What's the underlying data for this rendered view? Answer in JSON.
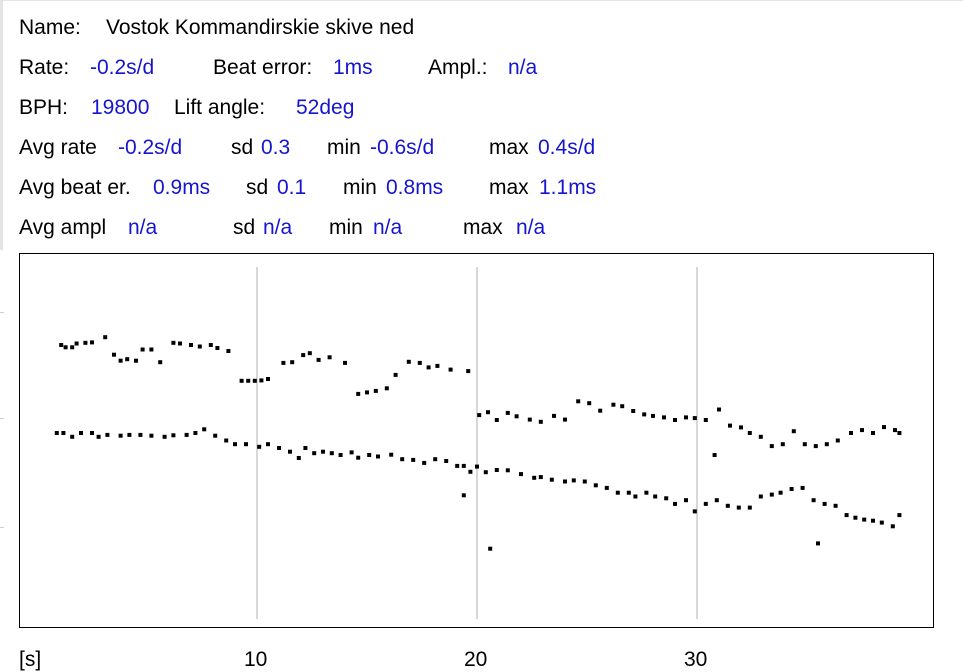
{
  "header": {
    "name_label": "Name:",
    "name_value": "Vostok Kommandirskie skive ned",
    "rate_label": "Rate:",
    "rate_value": "-0.2s/d",
    "beat_error_label": "Beat error:",
    "beat_error_value": "1ms",
    "ampl_label": "Ampl.:",
    "ampl_value": "n/a",
    "bph_label": "BPH:",
    "bph_value": "19800",
    "lift_label": "Lift angle:",
    "lift_value": "52deg"
  },
  "stats": {
    "avg_rate": {
      "label": "Avg rate",
      "value": "-0.2s/d",
      "sd_label": "sd",
      "sd": "0.3",
      "min_label": "min",
      "min": "-0.6s/d",
      "max_label": "max",
      "max": "0.4s/d"
    },
    "avg_beat": {
      "label": "Avg beat er.",
      "value": "0.9ms",
      "sd_label": "sd",
      "sd": "0.1",
      "min_label": "min",
      "min": "0.8ms",
      "max_label": "max",
      "max": "1.1ms"
    },
    "avg_ampl": {
      "label": "Avg ampl",
      "value": "n/a",
      "sd_label": "sd",
      "sd": "n/a",
      "min_label": "min",
      "min": "n/a",
      "max_label": "max",
      "max": "n/a"
    }
  },
  "colors": {
    "value": "#1515d0",
    "grid": "#cccccc",
    "dot": "#000000"
  },
  "chart_data": {
    "type": "scatter",
    "xlabel": "[s]",
    "xlim": [
      0,
      40
    ],
    "ylim": [
      0,
      1
    ],
    "xticks": [
      10,
      20,
      30
    ],
    "xtick_labels": [
      "10",
      "20",
      "30"
    ],
    "grid": "vertical",
    "series": [
      {
        "values": [
          [
            1.1,
            0.756
          ],
          [
            1.3,
            0.75
          ],
          [
            1.6,
            0.75
          ],
          [
            1.8,
            0.76
          ],
          [
            2.2,
            0.762
          ],
          [
            2.5,
            0.763
          ],
          [
            3.1,
            0.777
          ],
          [
            3.5,
            0.73
          ],
          [
            3.8,
            0.714
          ],
          [
            4.1,
            0.718
          ],
          [
            4.5,
            0.714
          ],
          [
            4.8,
            0.744
          ],
          [
            5.2,
            0.744
          ],
          [
            5.6,
            0.71
          ],
          [
            6.2,
            0.762
          ],
          [
            6.5,
            0.76
          ],
          [
            7.0,
            0.756
          ],
          [
            7.4,
            0.752
          ],
          [
            7.9,
            0.756
          ],
          [
            8.2,
            0.748
          ],
          [
            8.7,
            0.74
          ],
          [
            9.3,
            0.66
          ],
          [
            9.6,
            0.66
          ],
          [
            9.9,
            0.66
          ],
          [
            10.2,
            0.661
          ],
          [
            10.5,
            0.665
          ],
          [
            11.2,
            0.708
          ],
          [
            11.6,
            0.71
          ],
          [
            12.1,
            0.729
          ],
          [
            12.4,
            0.734
          ],
          [
            12.8,
            0.716
          ],
          [
            13.3,
            0.723
          ],
          [
            14.0,
            0.708
          ],
          [
            14.6,
            0.625
          ],
          [
            15.0,
            0.629
          ],
          [
            15.4,
            0.633
          ],
          [
            15.9,
            0.64
          ],
          [
            16.3,
            0.676
          ],
          [
            16.9,
            0.711
          ],
          [
            17.4,
            0.708
          ],
          [
            17.8,
            0.696
          ],
          [
            18.2,
            0.7
          ],
          [
            18.8,
            0.69
          ],
          [
            19.6,
            0.686
          ],
          [
            20.1,
            0.568
          ],
          [
            20.5,
            0.576
          ],
          [
            20.9,
            0.555
          ],
          [
            21.4,
            0.574
          ],
          [
            21.8,
            0.565
          ],
          [
            22.4,
            0.556
          ],
          [
            22.9,
            0.55
          ],
          [
            23.5,
            0.566
          ],
          [
            24.0,
            0.556
          ],
          [
            24.6,
            0.605
          ],
          [
            25.1,
            0.6
          ],
          [
            25.6,
            0.58
          ],
          [
            26.2,
            0.596
          ],
          [
            26.6,
            0.592
          ],
          [
            27.1,
            0.579
          ],
          [
            27.6,
            0.57
          ],
          [
            28.0,
            0.566
          ],
          [
            28.5,
            0.562
          ],
          [
            29.0,
            0.555
          ],
          [
            29.5,
            0.562
          ],
          [
            29.9,
            0.56
          ],
          [
            30.4,
            0.555
          ],
          [
            30.8,
            0.461
          ],
          [
            31.0,
            0.583
          ],
          [
            31.5,
            0.54
          ],
          [
            32.0,
            0.535
          ],
          [
            32.4,
            0.52
          ],
          [
            32.9,
            0.51
          ],
          [
            33.4,
            0.485
          ],
          [
            33.9,
            0.49
          ],
          [
            34.4,
            0.525
          ],
          [
            34.9,
            0.49
          ],
          [
            35.4,
            0.485
          ],
          [
            35.9,
            0.49
          ],
          [
            36.4,
            0.5
          ],
          [
            37.0,
            0.52
          ],
          [
            37.5,
            0.528
          ],
          [
            38.0,
            0.52
          ],
          [
            38.5,
            0.536
          ],
          [
            39.0,
            0.528
          ],
          [
            39.2,
            0.52
          ]
        ]
      },
      {
        "values": [
          [
            0.9,
            0.52
          ],
          [
            1.2,
            0.52
          ],
          [
            1.6,
            0.51
          ],
          [
            2.0,
            0.52
          ],
          [
            2.5,
            0.52
          ],
          [
            2.8,
            0.51
          ],
          [
            3.2,
            0.515
          ],
          [
            3.8,
            0.513
          ],
          [
            4.2,
            0.515
          ],
          [
            4.7,
            0.515
          ],
          [
            5.2,
            0.513
          ],
          [
            5.8,
            0.51
          ],
          [
            6.2,
            0.514
          ],
          [
            6.8,
            0.515
          ],
          [
            7.2,
            0.52
          ],
          [
            7.6,
            0.53
          ],
          [
            8.1,
            0.513
          ],
          [
            8.6,
            0.5
          ],
          [
            9.0,
            0.49
          ],
          [
            9.5,
            0.49
          ],
          [
            10.1,
            0.483
          ],
          [
            10.5,
            0.49
          ],
          [
            11.0,
            0.48
          ],
          [
            11.5,
            0.47
          ],
          [
            11.9,
            0.453
          ],
          [
            12.2,
            0.48
          ],
          [
            12.6,
            0.466
          ],
          [
            13.0,
            0.47
          ],
          [
            13.4,
            0.466
          ],
          [
            13.8,
            0.461
          ],
          [
            14.3,
            0.468
          ],
          [
            14.6,
            0.454
          ],
          [
            15.1,
            0.461
          ],
          [
            15.5,
            0.457
          ],
          [
            16.1,
            0.462
          ],
          [
            16.6,
            0.45
          ],
          [
            17.1,
            0.448
          ],
          [
            17.6,
            0.44
          ],
          [
            18.1,
            0.45
          ],
          [
            18.6,
            0.445
          ],
          [
            19.1,
            0.432
          ],
          [
            19.4,
            0.432
          ],
          [
            19.7,
            0.416
          ],
          [
            20.0,
            0.43
          ],
          [
            20.4,
            0.415
          ],
          [
            20.9,
            0.421
          ],
          [
            21.4,
            0.42
          ],
          [
            22.0,
            0.41
          ],
          [
            22.6,
            0.4
          ],
          [
            22.9,
            0.402
          ],
          [
            23.4,
            0.395
          ],
          [
            24.0,
            0.39
          ],
          [
            24.4,
            0.393
          ],
          [
            24.9,
            0.39
          ],
          [
            25.4,
            0.38
          ],
          [
            25.9,
            0.373
          ],
          [
            26.4,
            0.36
          ],
          [
            26.9,
            0.36
          ],
          [
            27.2,
            0.35
          ],
          [
            27.7,
            0.36
          ],
          [
            28.1,
            0.35
          ],
          [
            28.6,
            0.345
          ],
          [
            29.0,
            0.33
          ],
          [
            29.5,
            0.34
          ],
          [
            29.9,
            0.31
          ],
          [
            30.4,
            0.33
          ],
          [
            30.9,
            0.34
          ],
          [
            31.4,
            0.325
          ],
          [
            31.9,
            0.32
          ],
          [
            32.4,
            0.32
          ],
          [
            32.9,
            0.35
          ],
          [
            33.4,
            0.355
          ],
          [
            33.8,
            0.36
          ],
          [
            34.3,
            0.37
          ],
          [
            34.8,
            0.373
          ],
          [
            35.3,
            0.34
          ],
          [
            35.8,
            0.33
          ],
          [
            36.3,
            0.325
          ],
          [
            36.8,
            0.3
          ],
          [
            37.2,
            0.293
          ],
          [
            37.6,
            0.288
          ],
          [
            38.0,
            0.285
          ],
          [
            38.4,
            0.28
          ],
          [
            38.9,
            0.27
          ],
          [
            39.2,
            0.3
          ],
          [
            19.4,
            0.353
          ],
          [
            20.6,
            0.21
          ],
          [
            35.5,
            0.224
          ]
        ]
      }
    ]
  }
}
